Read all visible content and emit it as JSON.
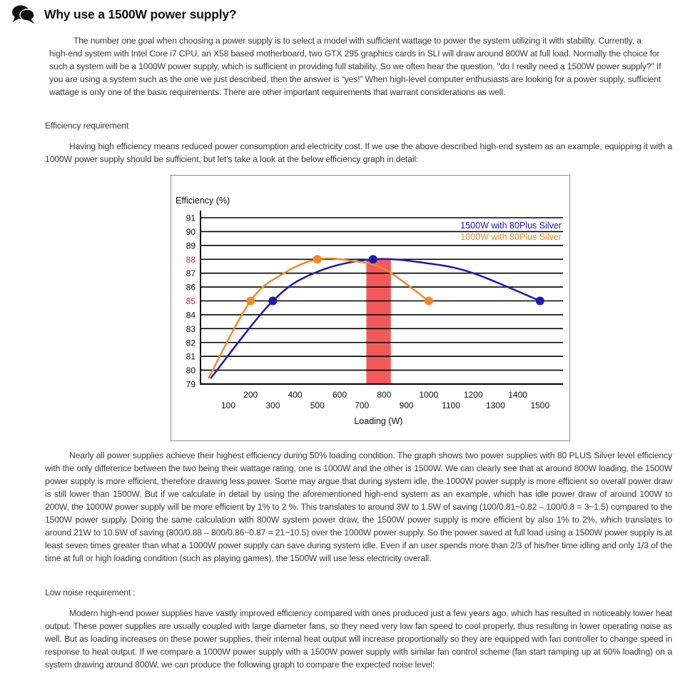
{
  "header": {
    "icon": "speech-bubbles-icon",
    "title": "Why use a 1500W power supply?"
  },
  "paragraphs": {
    "intro": "The number one goal when choosing a power supply is to select a model with sufficient wattage to power the system utilizing it with stability. Currently, a high-end system with Intel Core i7 CPU, an X58 based motherboard, two GTX 295 graphics cards in SLI will draw around 800W at full load.  Normally the choice for such a system will be a 1000W power supply, which is sufficient in providing full stability.  So we often hear the question, \"do I really need a 1500W power supply?\"  If you are using a system such as the one we just described, then the answer is “yes!”  When high-level computer enthusiasts are looking for a power supply, sufficient wattage is only one of the basic requirements.  There are other important requirements that warrant considerations as well.",
    "efficiency_heading": "Efficiency requirement",
    "efficiency_intro": "Having high efficiency means reduced power consumption and electricity cost.  If we use the above described high-end system as an example, equipping it with a 1000W power supply should be sufficient, but let’s take a look at the below efficiency graph in detail:",
    "efficiency_body": "Nearly all power supplies achieve their highest efficiency during 50% loading condition.  The graph shows two power supplies with 80 PLUS Silver level efficiency with the only difference between the two being their wattage rating, one is 1000W and the other is 1500W.  We can clearly see that at around 800W loading, the 1500W power supply is more efficient, therefore drawing less power.  Some may argue that during system idle, the 1000W power supply is more efficient so overall power draw is still lower than 1500W.  But if we calculate in detail by using the aforementioned high-end system as an example, which has idle power draw of around 100W to 200W, the 1000W power supply will be more efficient by 1% to 2 %.  This translates to around 3W to 1.5W of saving (100/0.81~0.82 – 100/0.8 = 3~1.5) compared to the 1500W power supply.  Doing the same calculation with 800W system power draw, the 1500W power supply is more efficient by also 1% to 2%, which translates to around 21W to 10.5W of saving (800/0.88 – 800/0.86~0.87 = 21~10.5) over the 1000W power supply.  So the power saved at full load using a 1500W power supply is at least seven times greater than what a 1000W power supply can save during system idle.  Even if an user spends more than 2/3 of his/her time idling and only 1/3 of the time at full or high loading condition (such as playing games), the 1500W will use less electricity overall.",
    "noise_heading": "Low noise requirement :",
    "noise_body": "Modern high-end power supplies have vastly improved efficiency compared with ones produced just a few years ago, which has resulted in noticeably lower heat output.  These power supplies are usually coupled with large diameter fans, so they need very low fan speed to cool properly, thus resulting in lower operating noise as well.  But as loading increases on these power supplies, their internal heat output will increase proportionally so they are equipped with fan controller to change speed in response to heat output.  If we compare a 1000W power supply with a 1500W power supply with similar fan control scheme (fan start ramping up at 60% loading) on a system drawing around 800W, we can produce the following graph to compare the expected noise level:"
  },
  "chart_data": {
    "type": "line",
    "ylabel": "Efficiency (%)",
    "xlabel": "Loading (W)",
    "ylim": [
      79,
      91
    ],
    "yticks": [
      "91",
      "90",
      "89",
      "88",
      "87",
      "86",
      "85",
      "84",
      "83",
      "82",
      "81",
      "80",
      "79"
    ],
    "highlighted_yticks": [
      "88",
      "85"
    ],
    "xticks_upper": [
      "200",
      "400",
      "600",
      "800",
      "1000",
      "1200",
      "1400"
    ],
    "xticks_lower": [
      "100",
      "300",
      "500",
      "700",
      "900",
      "1100",
      "1300",
      "1500"
    ],
    "grid": true,
    "legend_placement": "top-right",
    "highlight_band": {
      "x": [
        720,
        830
      ],
      "color": "#f25a5a"
    },
    "series": [
      {
        "name": "1500W with 80Plus Silver",
        "color": "#1a1ab0",
        "markers": [
          [
            300,
            85
          ],
          [
            750,
            88
          ],
          [
            1500,
            85
          ]
        ],
        "curve": [
          [
            20,
            79.4
          ],
          [
            300,
            85
          ],
          [
            500,
            87.1
          ],
          [
            750,
            88
          ],
          [
            1000,
            87.7
          ],
          [
            1200,
            87
          ],
          [
            1500,
            85
          ]
        ]
      },
      {
        "name": "1000W with 80Plus Silver",
        "color": "#f08a24",
        "markers": [
          [
            200,
            85
          ],
          [
            500,
            88
          ],
          [
            1000,
            85
          ]
        ],
        "curve": [
          [
            10,
            79.4
          ],
          [
            200,
            85
          ],
          [
            350,
            87
          ],
          [
            500,
            88
          ],
          [
            650,
            87.9
          ],
          [
            800,
            87.3
          ],
          [
            1000,
            85
          ]
        ]
      }
    ]
  }
}
